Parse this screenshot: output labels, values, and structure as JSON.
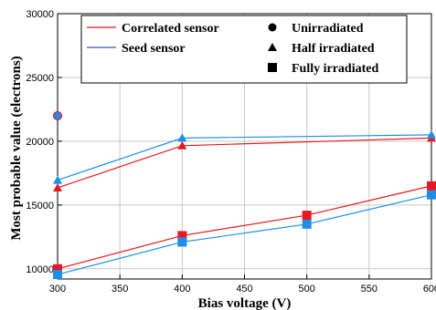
{
  "chart_data": {
    "type": "line",
    "title": "",
    "xlabel": "Bias voltage (V)",
    "ylabel": "Most probable value (electrons)",
    "xlim": [
      300,
      600
    ],
    "ylim": [
      9200,
      30000
    ],
    "xticks": [
      300,
      350,
      400,
      450,
      500,
      550,
      600
    ],
    "yticks": [
      10000,
      15000,
      20000,
      25000,
      30000
    ],
    "grid": true,
    "legend_placement": "top",
    "colors": {
      "correlated": "#e8181e",
      "seed": "#1e8fe8",
      "seed_line": "#3a56c8"
    },
    "series": [
      {
        "name": "Correlated sensor",
        "condition": "Unirradiated",
        "marker": "circle",
        "color": "#e8181e",
        "connected": false,
        "x": [
          300
        ],
        "y": [
          22000
        ]
      },
      {
        "name": "Seed sensor",
        "condition": "Unirradiated",
        "marker": "circle",
        "color": "#1e8fe8",
        "connected": false,
        "x": [
          300
        ],
        "y": [
          22000
        ]
      },
      {
        "name": "Correlated sensor",
        "condition": "Half irradiated",
        "marker": "triangle",
        "color": "#e8181e",
        "connected": true,
        "x": [
          300,
          400,
          600
        ],
        "y": [
          16350,
          19650,
          20250
        ]
      },
      {
        "name": "Seed sensor",
        "condition": "Half irradiated",
        "marker": "triangle",
        "color": "#1e8fe8",
        "connected": true,
        "x": [
          300,
          400,
          600
        ],
        "y": [
          16950,
          20250,
          20500
        ]
      },
      {
        "name": "Correlated sensor",
        "condition": "Fully irradiated",
        "marker": "square",
        "color": "#e8181e",
        "connected": true,
        "x": [
          300,
          400,
          500,
          600
        ],
        "y": [
          10000,
          12600,
          14200,
          16500
        ]
      },
      {
        "name": "Seed sensor",
        "condition": "Fully irradiated",
        "marker": "square",
        "color": "#1e8fe8",
        "connected": true,
        "x": [
          300,
          400,
          500,
          600
        ],
        "y": [
          9550,
          12100,
          13500,
          15800
        ]
      }
    ],
    "legend": {
      "lines": [
        {
          "label": "Correlated sensor",
          "color": "#e8181e"
        },
        {
          "label": "Seed sensor",
          "color": "#3a56c8"
        }
      ],
      "markers": [
        {
          "label": "Unirradiated",
          "marker": "circle"
        },
        {
          "label": "Half irradiated",
          "marker": "triangle"
        },
        {
          "label": "Fully irradiated",
          "marker": "square"
        }
      ]
    }
  }
}
